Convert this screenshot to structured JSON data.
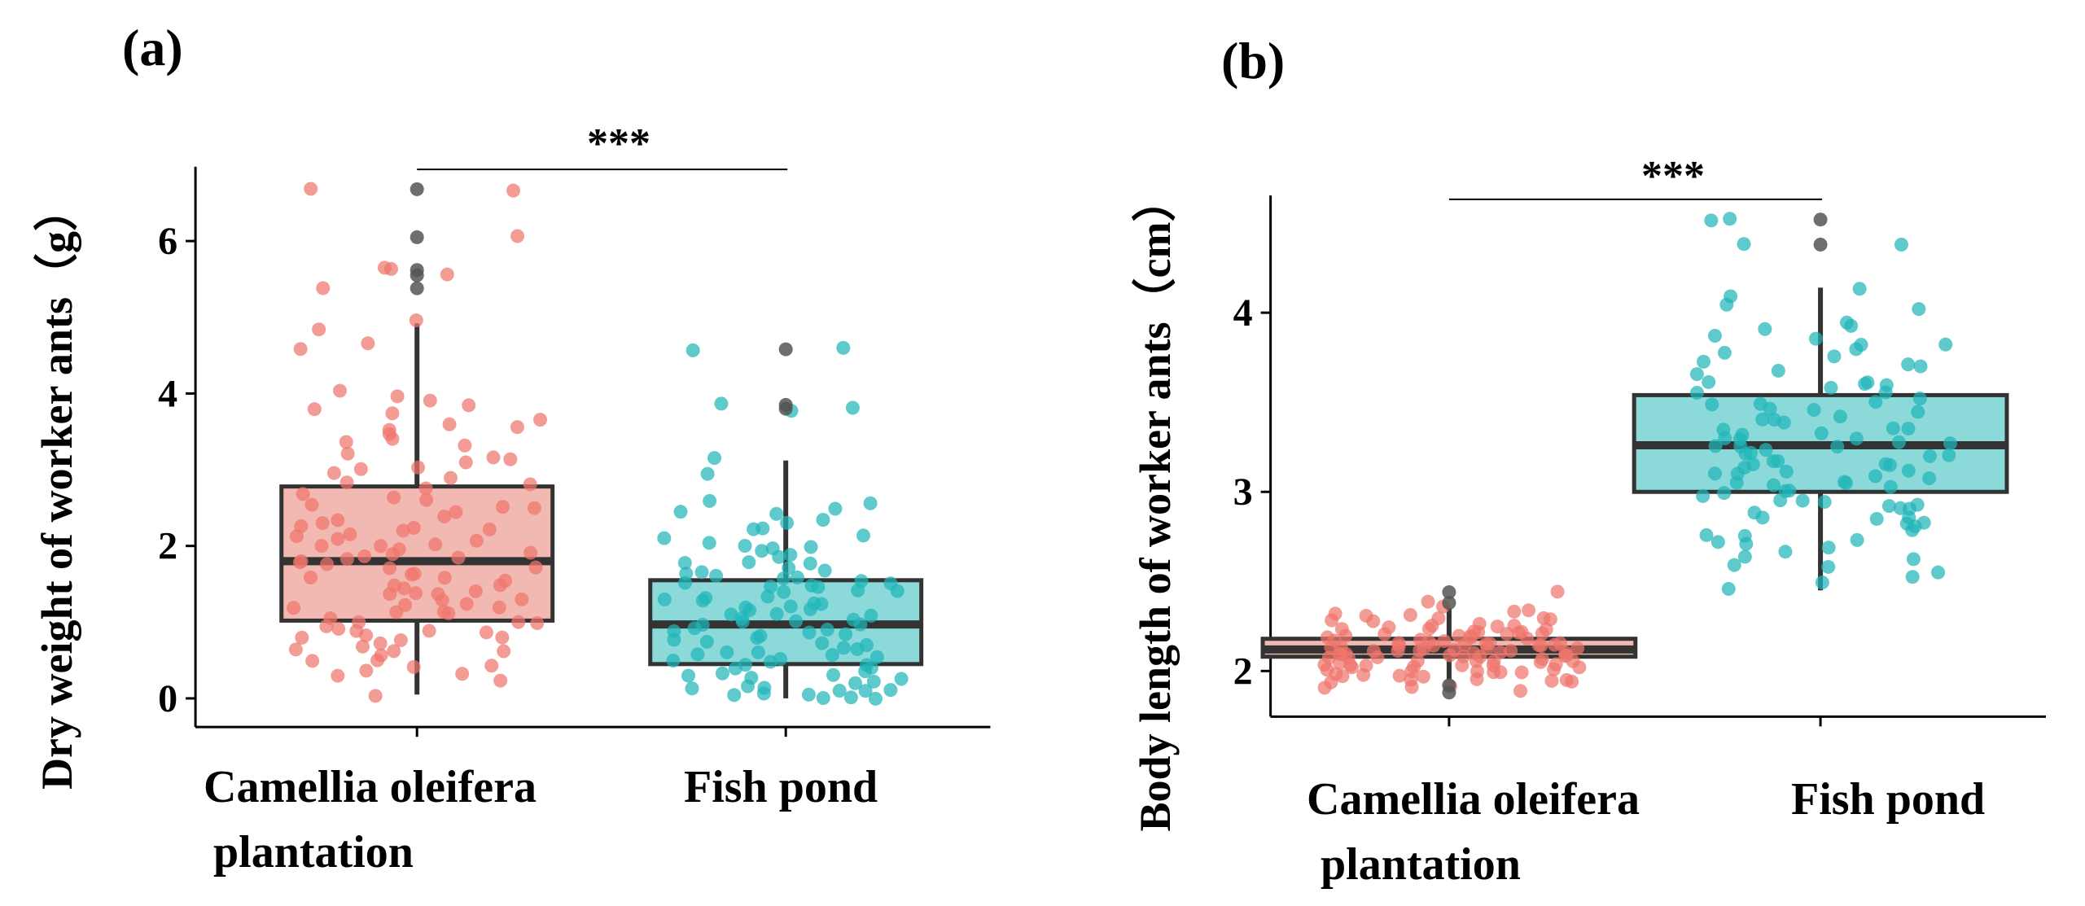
{
  "colors": {
    "camellia_point": "#EE766C",
    "camellia_box": "#F2B8B2",
    "fish_point": "#20B6B8",
    "fish_box": "#8CD9DA",
    "outlier": "#555555",
    "box_line": "#333333"
  },
  "chart_data": [
    {
      "type": "box",
      "panel": "(a)",
      "ylabel": "Dry weight of worker ants（g）",
      "categories": [
        "Camellia oleifera\nplantation",
        "Fish pond"
      ],
      "category_lines": [
        [
          "Camellia oleifera",
          "plantation"
        ],
        [
          "Fish pond"
        ]
      ],
      "yticks": [
        0,
        2,
        4,
        6
      ],
      "ylim": [
        -0.15,
        7.0
      ],
      "significance": "***",
      "boxes": [
        {
          "name": "Camellia oleifera plantation",
          "min": 0.05,
          "q1": 1.02,
          "median": 1.8,
          "q3": 2.78,
          "max": 4.92,
          "outliers": [
            5.38,
            5.55,
            5.62,
            6.05,
            6.68
          ]
        },
        {
          "name": "Fish pond",
          "min": 0.0,
          "q1": 0.45,
          "median": 0.97,
          "q3": 1.55,
          "max": 3.12,
          "outliers": [
            3.8,
            3.85,
            4.58
          ]
        }
      ],
      "points": [
        [
          6.68,
          6.68,
          6.05,
          5.65,
          5.55,
          5.4,
          5.62,
          4.95,
          4.85,
          4.65,
          4.6,
          4.05,
          3.95,
          3.9,
          3.85,
          3.78,
          3.72,
          3.65,
          3.6,
          3.55,
          3.52,
          3.48,
          3.4,
          3.35,
          3.3,
          3.22,
          3.18,
          3.15,
          3.1,
          3.05,
          3.0,
          2.95,
          2.9,
          2.85,
          2.8,
          2.75,
          2.7,
          2.65,
          2.6,
          2.55,
          2.5,
          2.48,
          2.45,
          2.4,
          2.35,
          2.32,
          2.28,
          2.25,
          2.2,
          2.18,
          2.15,
          2.12,
          2.08,
          2.05,
          2.02,
          2.0,
          1.98,
          1.95,
          1.92,
          1.9,
          1.88,
          1.85,
          1.82,
          1.8,
          1.78,
          1.75,
          1.72,
          1.7,
          1.65,
          1.62,
          1.6,
          1.58,
          1.55,
          1.5,
          1.48,
          1.45,
          1.42,
          1.4,
          1.38,
          1.35,
          1.3,
          1.28,
          1.25,
          1.22,
          1.2,
          1.18,
          1.15,
          1.12,
          1.1,
          1.05,
          1.02,
          1.0,
          0.98,
          0.95,
          0.92,
          0.9,
          0.88,
          0.85,
          0.82,
          0.8,
          0.78,
          0.75,
          0.72,
          0.7,
          0.65,
          0.62,
          0.6,
          0.55,
          0.52,
          0.5,
          0.45,
          0.4,
          0.35,
          0.32,
          0.3,
          0.25,
          0.05
        ],
        [
          4.58,
          4.58,
          3.85,
          3.8,
          3.78,
          3.15,
          2.95,
          2.6,
          2.55,
          2.48,
          2.45,
          2.4,
          2.35,
          2.3,
          2.25,
          2.2,
          2.15,
          2.1,
          2.05,
          2.02,
          2.0,
          1.95,
          1.92,
          1.88,
          1.85,
          1.8,
          1.78,
          1.75,
          1.7,
          1.68,
          1.65,
          1.62,
          1.6,
          1.58,
          1.55,
          1.52,
          1.5,
          1.48,
          1.45,
          1.42,
          1.4,
          1.38,
          1.35,
          1.32,
          1.3,
          1.28,
          1.25,
          1.22,
          1.2,
          1.18,
          1.15,
          1.12,
          1.1,
          1.08,
          1.05,
          1.02,
          1.0,
          0.98,
          0.95,
          0.92,
          0.9,
          0.88,
          0.85,
          0.82,
          0.8,
          0.78,
          0.75,
          0.72,
          0.7,
          0.68,
          0.65,
          0.62,
          0.6,
          0.58,
          0.55,
          0.52,
          0.5,
          0.48,
          0.45,
          0.42,
          0.4,
          0.38,
          0.35,
          0.32,
          0.3,
          0.28,
          0.25,
          0.22,
          0.2,
          0.18,
          0.15,
          0.12,
          0.1,
          0.08,
          0.06,
          0.05,
          0.03,
          0.02,
          0.01,
          0.0,
          0.12,
          0.3,
          0.55,
          0.85,
          1.05,
          1.25,
          1.45,
          1.65
        ]
      ]
    },
    {
      "type": "box",
      "panel": "(b)",
      "ylabel": "Body length of worker ants（cm）",
      "categories": [
        "Camellia oleifera\nplantation",
        "Fish pond"
      ],
      "category_lines": [
        [
          "Camellia oleifera",
          "plantation"
        ],
        [
          "Fish pond"
        ]
      ],
      "yticks": [
        2,
        3,
        4
      ],
      "ylim": [
        1.78,
        4.66
      ],
      "significance": "***",
      "boxes": [
        {
          "name": "Camellia oleifera plantation",
          "min": 1.95,
          "q1": 2.08,
          "median": 2.12,
          "q3": 2.18,
          "max": 2.35,
          "outliers": [
            1.88,
            1.92,
            2.38,
            2.44
          ]
        },
        {
          "name": "Fish pond",
          "min": 2.45,
          "q1": 3.0,
          "median": 3.26,
          "q3": 3.54,
          "max": 4.14,
          "outliers": [
            4.38,
            4.52
          ]
        }
      ],
      "points": [
        [
          2.44,
          2.38,
          2.36,
          2.34,
          2.33,
          2.32,
          2.31,
          2.3,
          2.29,
          2.28,
          2.28,
          2.27,
          2.26,
          2.25,
          2.25,
          2.24,
          2.23,
          2.23,
          2.22,
          2.22,
          2.21,
          2.21,
          2.2,
          2.2,
          2.19,
          2.19,
          2.18,
          2.18,
          2.17,
          2.17,
          2.17,
          2.16,
          2.16,
          2.15,
          2.15,
          2.15,
          2.14,
          2.14,
          2.14,
          2.13,
          2.13,
          2.13,
          2.12,
          2.12,
          2.12,
          2.11,
          2.11,
          2.11,
          2.1,
          2.1,
          2.1,
          2.09,
          2.09,
          2.09,
          2.08,
          2.08,
          2.08,
          2.07,
          2.07,
          2.07,
          2.06,
          2.06,
          2.06,
          2.05,
          2.05,
          2.05,
          2.04,
          2.04,
          2.04,
          2.03,
          2.03,
          2.03,
          2.02,
          2.02,
          2.02,
          2.01,
          2.01,
          2.0,
          2.0,
          2.0,
          1.99,
          1.99,
          1.98,
          1.98,
          1.97,
          1.97,
          1.96,
          1.96,
          1.95,
          1.95,
          1.94,
          1.94,
          1.93,
          1.92,
          1.91,
          1.9,
          1.88,
          2.15,
          2.12,
          2.18,
          2.22,
          2.09,
          2.26,
          2.3,
          2.14,
          2.06,
          2.2,
          2.11,
          2.24,
          2.16
        ],
        [
          4.52,
          4.52,
          4.38,
          4.38,
          4.14,
          4.1,
          4.05,
          4.02,
          3.95,
          3.9,
          3.88,
          3.85,
          3.82,
          3.8,
          3.78,
          3.75,
          3.72,
          3.7,
          3.68,
          3.65,
          3.62,
          3.6,
          3.58,
          3.55,
          3.52,
          3.5,
          3.48,
          3.46,
          3.44,
          3.42,
          3.4,
          3.38,
          3.36,
          3.35,
          3.33,
          3.32,
          3.3,
          3.29,
          3.28,
          3.27,
          3.26,
          3.25,
          3.24,
          3.22,
          3.21,
          3.2,
          3.18,
          3.17,
          3.16,
          3.15,
          3.14,
          3.12,
          3.11,
          3.1,
          3.09,
          3.08,
          3.06,
          3.05,
          3.04,
          3.02,
          3.01,
          3.0,
          2.98,
          2.96,
          2.95,
          2.93,
          2.92,
          2.9,
          2.88,
          2.86,
          2.85,
          2.83,
          2.82,
          2.8,
          2.78,
          2.76,
          2.75,
          2.73,
          2.72,
          2.7,
          2.68,
          2.66,
          2.64,
          2.62,
          2.6,
          2.58,
          2.55,
          2.52,
          2.5,
          2.45,
          3.55,
          3.45,
          3.35,
          3.25,
          3.15,
          3.05,
          2.95,
          2.85,
          3.62,
          3.72,
          3.82,
          3.92,
          3.3,
          3.2,
          3.4,
          3.1,
          2.9,
          3.0,
          3.5,
          3.6
        ]
      ]
    }
  ]
}
